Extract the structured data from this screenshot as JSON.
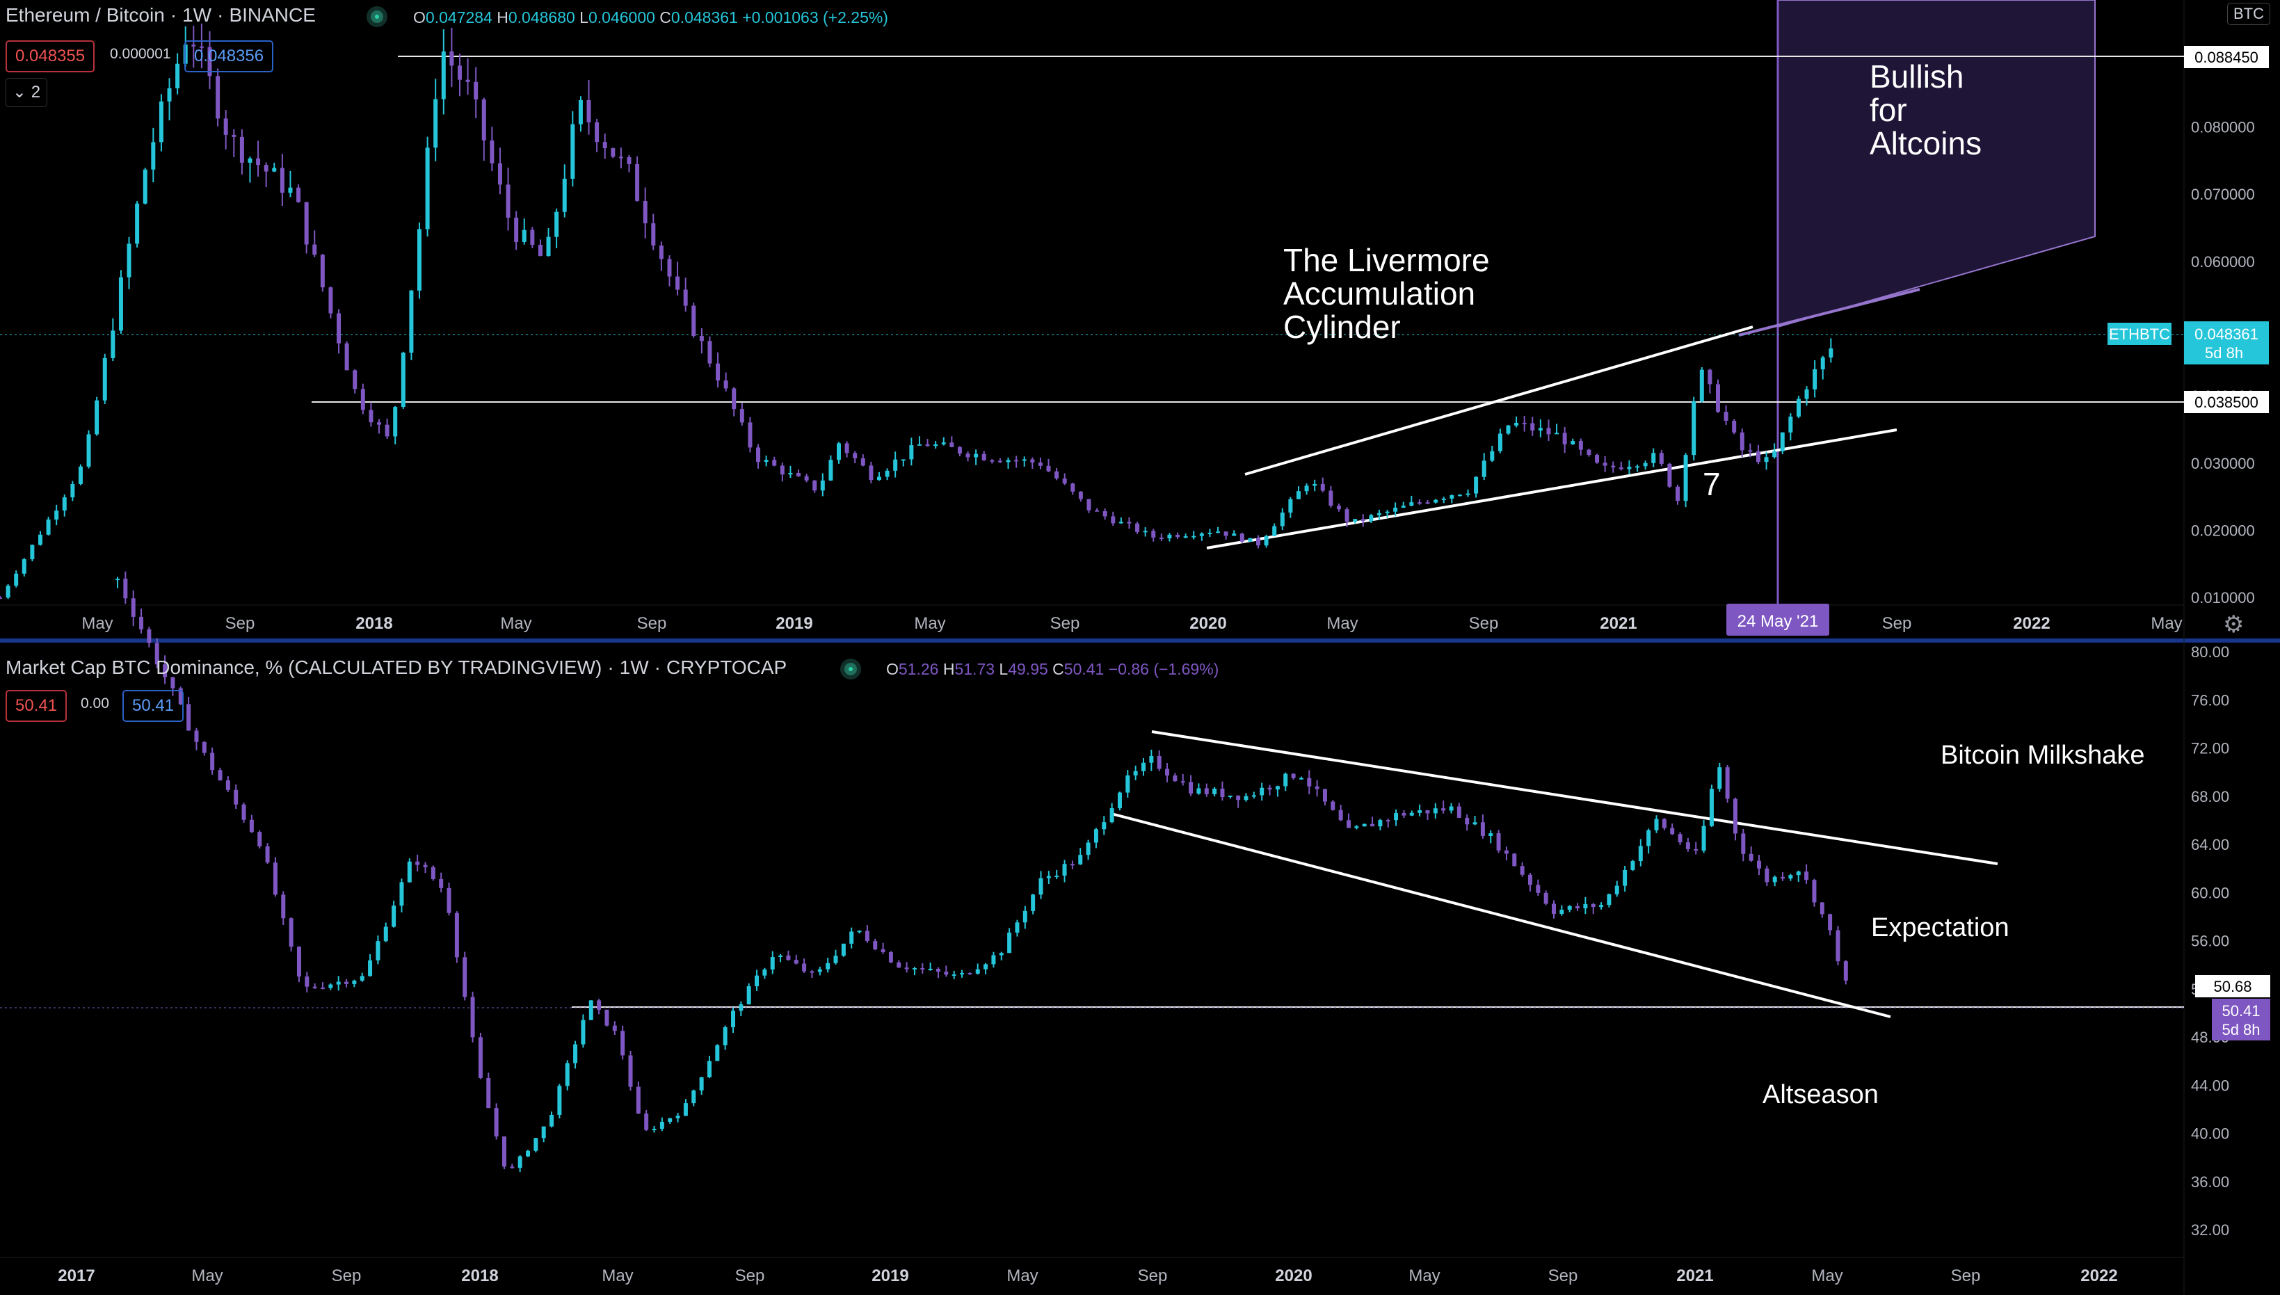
{
  "colors": {
    "background": "#000000",
    "up": "#26c6da",
    "down": "#7e57c2",
    "accent": "#2962ff",
    "projection": "#9575cd"
  },
  "top_pane": {
    "title": "Ethereum / Bitcoin",
    "interval": "1W",
    "exchange": "BINANCE",
    "ohlc": {
      "o_label": "O",
      "o": "0.047284",
      "h_label": "H",
      "h": "0.048680",
      "l_label": "L",
      "l": "0.046000",
      "c_label": "C",
      "c": "0.048361",
      "change": "+0.001063 (+2.25%)"
    },
    "bid": "0.048355",
    "spread": "0.000001",
    "ask": "0.048356",
    "collapse_count": "2",
    "currency_button": "BTC",
    "annotations": {
      "bullish_1": "Bullish",
      "bullish_2": "for",
      "bullish_3": "Altcoins",
      "liv_1": "The Livermore",
      "liv_2": "Accumulation",
      "liv_3": "Cylinder",
      "seven": "7"
    },
    "price_tags": {
      "level_high": "0.088450",
      "symbol": "ETHBTC",
      "last": "0.048361",
      "countdown": "5d 8h",
      "level_support": "0.038500"
    },
    "date_marker": "24 May '21"
  },
  "bottom_pane": {
    "title": "Market Cap BTC Dominance, % (CALCULATED BY TRADINGVIEW)",
    "interval": "1W",
    "exchange": "CRYPTOCAP",
    "ohlc": {
      "o_label": "O",
      "o": "51.26",
      "h_label": "H",
      "h": "51.73",
      "l_label": "L",
      "l": "49.95",
      "c_label": "C",
      "c": "50.41",
      "change": "−0.86 (−1.69%)"
    },
    "bid": "50.41",
    "spread": "0.00",
    "ask": "50.41",
    "annotations": {
      "milkshake": "Bitcoin Milkshake",
      "expectation": "Expectation",
      "altseason": "Altseason"
    },
    "price_tags": {
      "level": "50.68",
      "last": "50.41",
      "countdown": "5d 8h"
    }
  },
  "chart_data": [
    {
      "type": "candlestick",
      "title": "Ethereum / Bitcoin",
      "y_ticks": [
        "0.080000",
        "0.070000",
        "0.060000",
        "0.050000",
        "0.040000",
        "0.030000",
        "0.020000",
        "0.010000"
      ],
      "ylim": [
        0.0095,
        0.0905
      ],
      "x_ticks": [
        "May",
        "Sep",
        "2018",
        "May",
        "Sep",
        "2019",
        "May",
        "Sep",
        "2020",
        "May",
        "Sep",
        "2021",
        "Sep",
        "2022",
        "May"
      ],
      "anchors": [
        [
          2017.0,
          0.01
        ],
        [
          2017.2,
          0.03
        ],
        [
          2017.35,
          0.075
        ],
        [
          2017.45,
          0.095
        ],
        [
          2017.55,
          0.078
        ],
        [
          2017.7,
          0.07
        ],
        [
          2017.85,
          0.04
        ],
        [
          2017.93,
          0.033
        ],
        [
          2018.0,
          0.065
        ],
        [
          2018.05,
          0.092
        ],
        [
          2018.12,
          0.085
        ],
        [
          2018.22,
          0.065
        ],
        [
          2018.3,
          0.06
        ],
        [
          2018.38,
          0.083
        ],
        [
          2018.5,
          0.073
        ],
        [
          2018.62,
          0.054
        ],
        [
          2018.72,
          0.042
        ],
        [
          2018.8,
          0.031
        ],
        [
          2018.95,
          0.026
        ],
        [
          2019.0,
          0.033
        ],
        [
          2019.08,
          0.028
        ],
        [
          2019.2,
          0.033
        ],
        [
          2019.35,
          0.031
        ],
        [
          2019.48,
          0.03
        ],
        [
          2019.6,
          0.023
        ],
        [
          2019.75,
          0.019
        ],
        [
          2019.9,
          0.02
        ],
        [
          2020.0,
          0.018
        ],
        [
          2020.12,
          0.0275
        ],
        [
          2020.22,
          0.021
        ],
        [
          2020.4,
          0.0245
        ],
        [
          2020.5,
          0.026
        ],
        [
          2020.6,
          0.036
        ],
        [
          2020.72,
          0.034
        ],
        [
          2020.82,
          0.029
        ],
        [
          2020.95,
          0.031
        ],
        [
          2021.0,
          0.0245
        ],
        [
          2021.05,
          0.044
        ],
        [
          2021.15,
          0.032
        ],
        [
          2021.22,
          0.03
        ],
        [
          2021.3,
          0.041
        ],
        [
          2021.38,
          0.0484
        ]
      ],
      "support_level": 0.0385,
      "resistance_level": 0.08845,
      "last": 0.048361
    },
    {
      "type": "candlestick",
      "title": "Market Cap BTC Dominance, %",
      "y_ticks": [
        "80.00",
        "76.00",
        "72.00",
        "68.00",
        "64.00",
        "60.00",
        "56.00",
        "52.00",
        "48.00",
        "44.00",
        "40.00",
        "36.00",
        "32.00"
      ],
      "ylim": [
        31.2,
        80.3
      ],
      "x_ticks": [
        "2017",
        "May",
        "Sep",
        "2018",
        "May",
        "Sep",
        "2019",
        "May",
        "Sep",
        "2020",
        "May",
        "Sep",
        "2021",
        "May",
        "Sep",
        "2022"
      ],
      "anchors": [
        [
          2017.1,
          86.0
        ],
        [
          2017.3,
          72.0
        ],
        [
          2017.45,
          64.0
        ],
        [
          2017.55,
          52.0
        ],
        [
          2017.7,
          53.0
        ],
        [
          2017.82,
          63.0
        ],
        [
          2017.9,
          60.0
        ],
        [
          2017.98,
          45.0
        ],
        [
          2018.05,
          36.5
        ],
        [
          2018.15,
          41.0
        ],
        [
          2018.25,
          51.0
        ],
        [
          2018.32,
          48.0
        ],
        [
          2018.38,
          40.0
        ],
        [
          2018.48,
          42.0
        ],
        [
          2018.6,
          50.0
        ],
        [
          2018.7,
          55.0
        ],
        [
          2018.8,
          53.0
        ],
        [
          2018.9,
          57.0
        ],
        [
          2019.0,
          54.0
        ],
        [
          2019.15,
          53.0
        ],
        [
          2019.25,
          55.0
        ],
        [
          2019.35,
          61.0
        ],
        [
          2019.45,
          63.0
        ],
        [
          2019.55,
          69.0
        ],
        [
          2019.62,
          71.0
        ],
        [
          2019.72,
          68.5
        ],
        [
          2019.85,
          68.0
        ],
        [
          2019.98,
          70.0
        ],
        [
          2020.1,
          65.0
        ],
        [
          2020.22,
          66.5
        ],
        [
          2020.35,
          67.0
        ],
        [
          2020.45,
          64.5
        ],
        [
          2020.6,
          58.5
        ],
        [
          2020.72,
          59.0
        ],
        [
          2020.85,
          66.0
        ],
        [
          2020.95,
          63.0
        ],
        [
          2021.0,
          71.0
        ],
        [
          2021.05,
          64.0
        ],
        [
          2021.12,
          61.0
        ],
        [
          2021.2,
          62.0
        ],
        [
          2021.27,
          57.0
        ],
        [
          2021.33,
          50.4
        ]
      ],
      "support_level": 50.68,
      "last": 50.41
    }
  ]
}
